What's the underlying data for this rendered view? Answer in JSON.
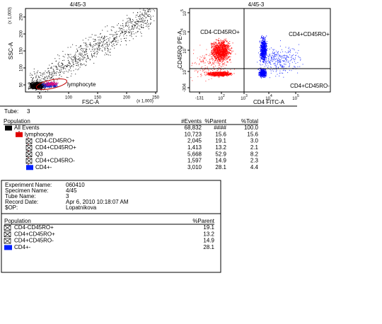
{
  "plots": [
    {
      "title": "4/45-3",
      "x_label": "FSC-A",
      "y_label": "SSC-A",
      "x_unit": "(x 1,000)",
      "y_unit": "(x 1,000)",
      "xticks": [
        "50",
        "100",
        "150",
        "200",
        "250"
      ],
      "yticks": [
        "50",
        "100",
        "150",
        "200",
        "250"
      ],
      "gate_label": "lymphocyte"
    },
    {
      "title": "4/45-3",
      "x_label": "CD4 FITC-A",
      "y_label": "CD45RO PE-A",
      "quadrant_labels": [
        "CD4-CD45RO+",
        "CD4+CD45RO+",
        "CD4+CD45RO-"
      ],
      "xticks": [
        "-131",
        {
          "base": "10",
          "exp": "2"
        },
        {
          "base": "10",
          "exp": "3"
        },
        {
          "base": "10",
          "exp": "4"
        },
        {
          "base": "10",
          "exp": "5"
        }
      ],
      "yticks": [
        "-304",
        {
          "base": "10",
          "exp": "2"
        },
        {
          "base": "10",
          "exp": "3"
        },
        {
          "base": "10",
          "exp": "4"
        },
        {
          "base": "10",
          "exp": "5"
        }
      ]
    }
  ],
  "tube": {
    "label": "Tube:",
    "value": "3"
  },
  "population_table": {
    "header": [
      "Population",
      "#Events",
      "%Parent",
      "%Total"
    ],
    "rows": [
      [
        "All Events",
        "68,832",
        "####",
        "100.0"
      ],
      [
        "lymphocyte",
        "10,723",
        "15.6",
        "15.6"
      ],
      [
        "CD4-CD45RO+",
        "2,045",
        "19.1",
        "3.0"
      ],
      [
        "CD4+CD45RO+",
        "1,413",
        "13.2",
        "2.1"
      ],
      [
        "Q3",
        "5,668",
        "52.9",
        "8.2"
      ],
      [
        "CD4+CD45RO-",
        "1,597",
        "14.9",
        "2.3"
      ],
      [
        "CD4+-",
        "3,010",
        "28.1",
        "4.4"
      ]
    ]
  },
  "info": [
    [
      "Experiment Name:",
      "060410"
    ],
    [
      "Specimen Name:",
      "4/45"
    ],
    [
      "Tube Name:",
      "3"
    ],
    [
      "Record Date:",
      "Apr 6, 2010 10:18:07 AM"
    ],
    [
      "$OP:",
      "Lopatnikova"
    ]
  ],
  "summary_table": {
    "header": [
      "Population",
      "%Parent"
    ],
    "rows": [
      [
        "CD4-CD45RO+",
        "19.1"
      ],
      [
        "CD4+CD45RO+",
        "13.2"
      ],
      [
        "CD4+CD45RO-",
        "14.9"
      ],
      [
        "CD4+-",
        "28.1"
      ]
    ]
  }
}
